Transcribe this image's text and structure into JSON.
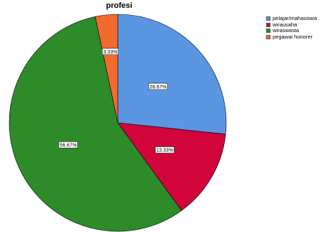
{
  "chart_data": {
    "type": "pie",
    "title": "profesi",
    "start_angle_deg": 0,
    "direction": "clockwise",
    "legend_position": "right",
    "slices": [
      {
        "label": "pelajar/mahasiswa",
        "value": 26.67,
        "display": "26.67%",
        "color": "#5b96e3"
      },
      {
        "label": "wirausaha",
        "value": 13.33,
        "display": "13.33%",
        "color": "#d1053a"
      },
      {
        "label": "wiraswasta",
        "value": 56.67,
        "display": "56.67%",
        "color": "#2e8b29"
      },
      {
        "label": "pegawai honorer",
        "value": 3.33,
        "display": "3.33%",
        "color": "#f26b2e"
      }
    ]
  }
}
